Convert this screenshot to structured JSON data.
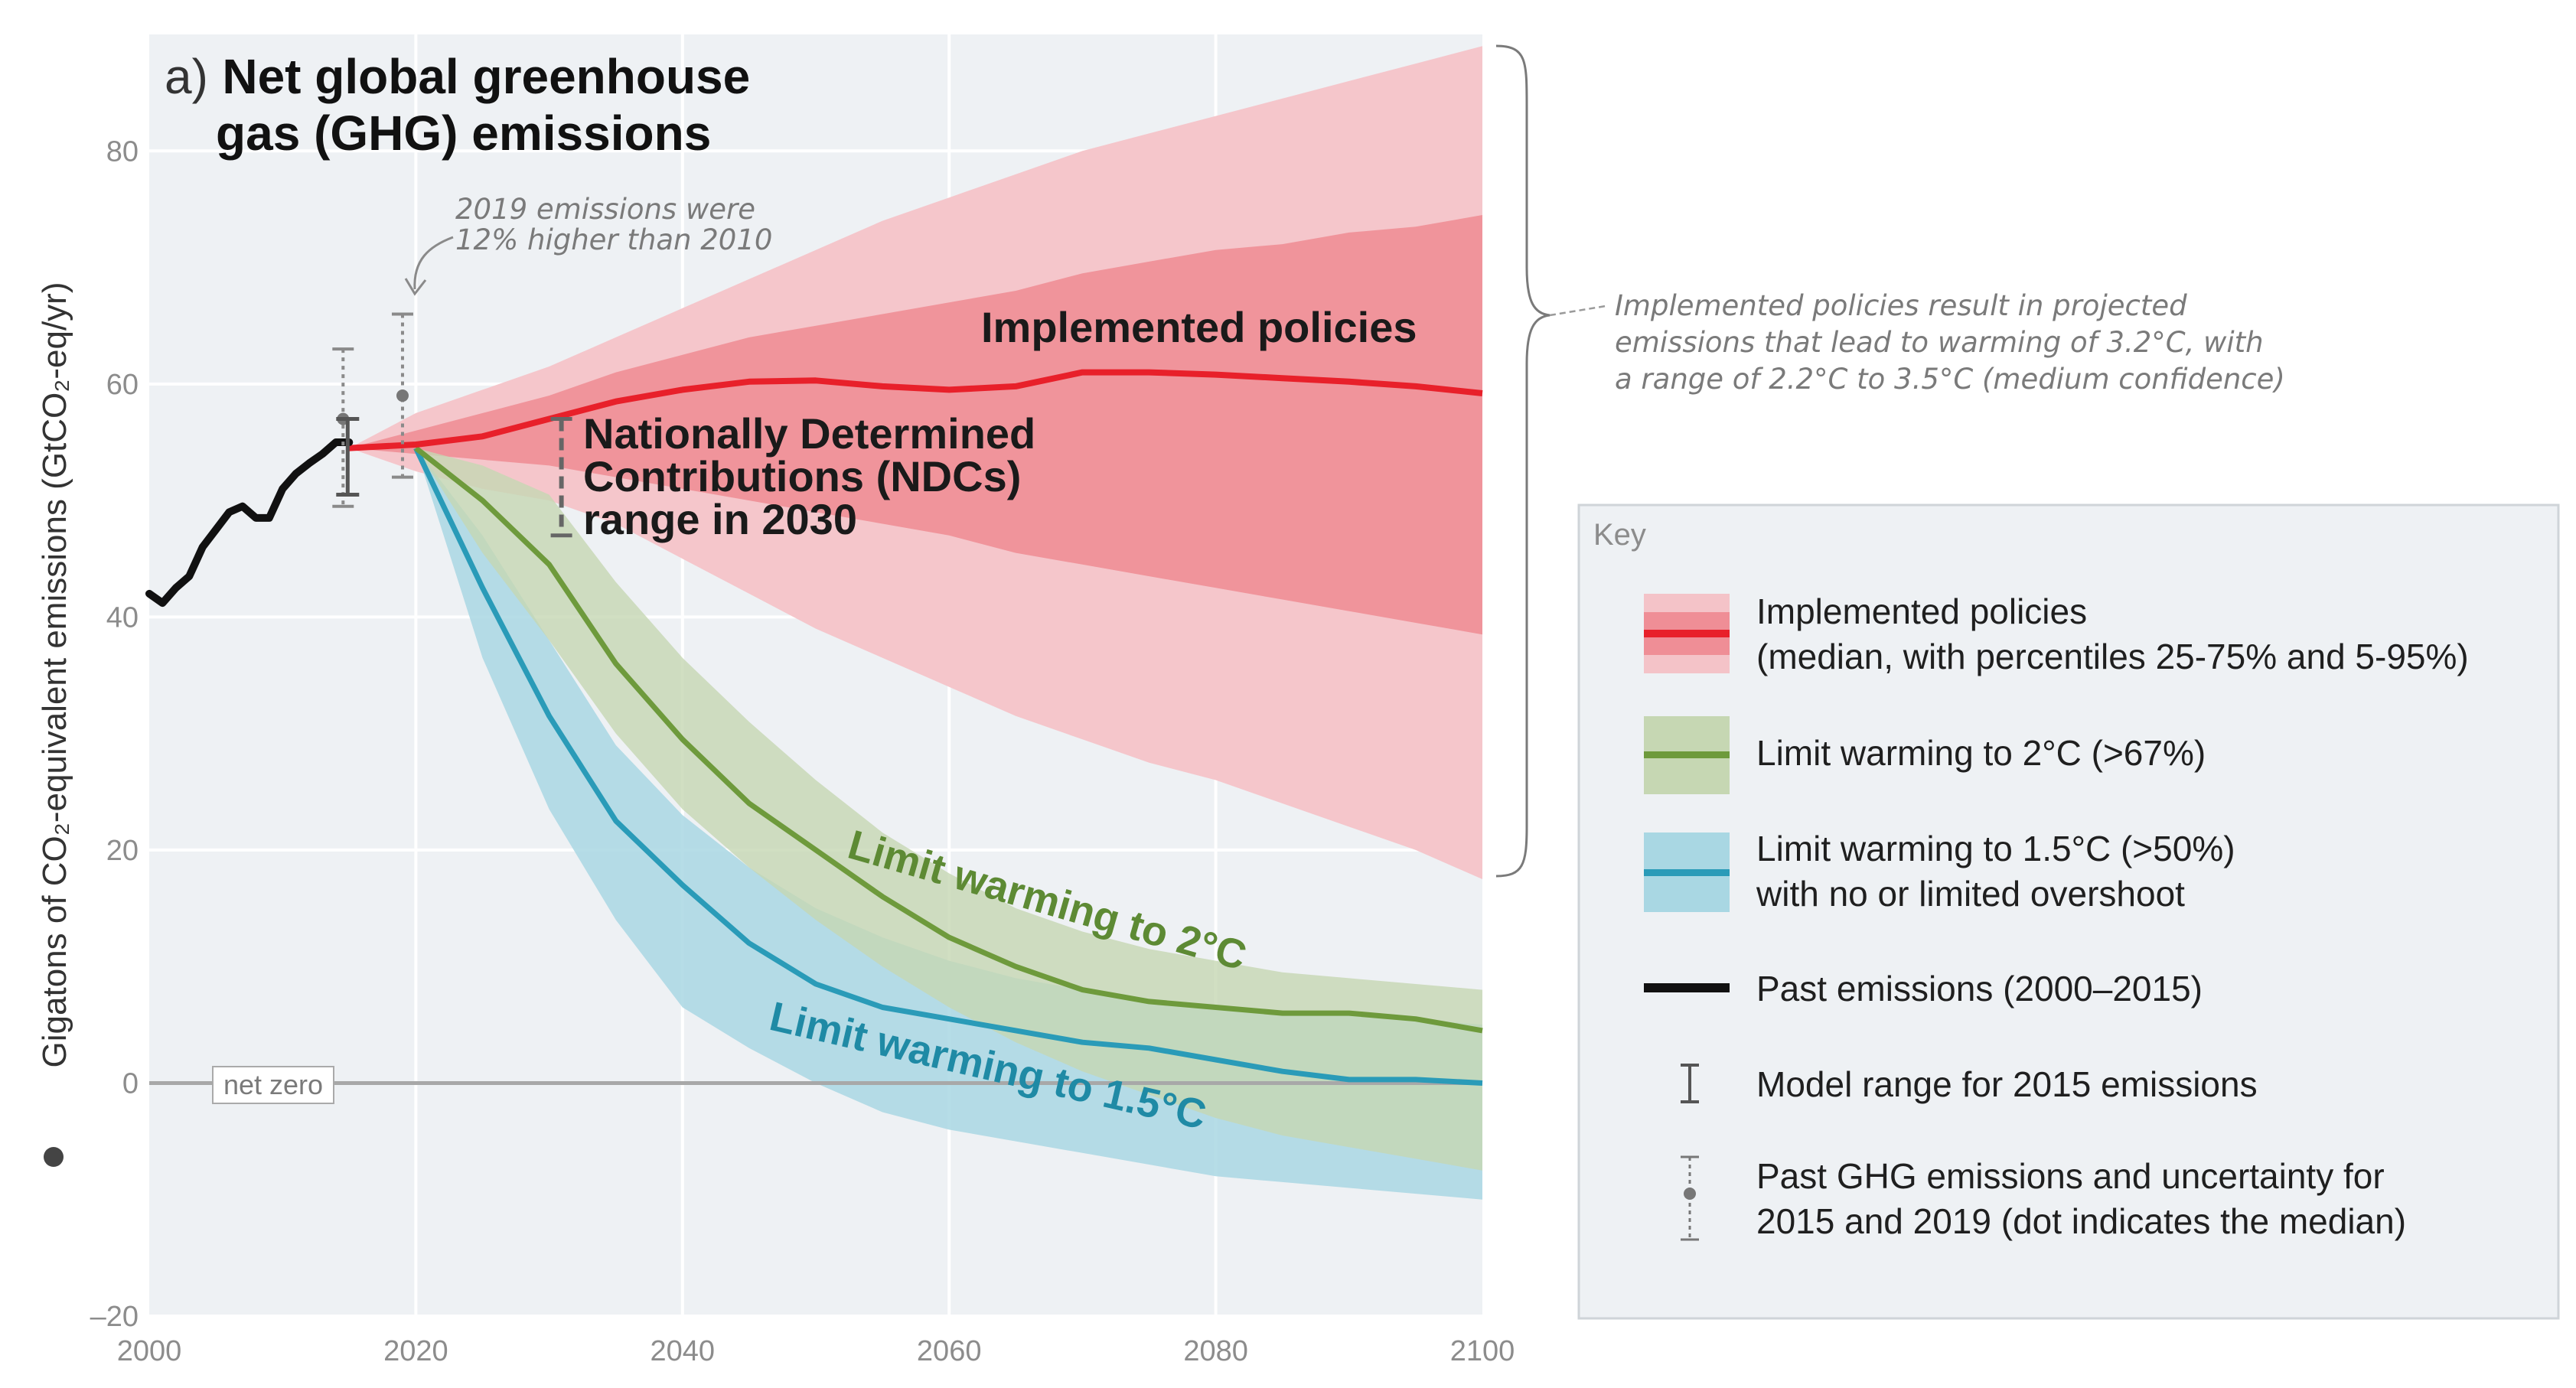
{
  "chart_data": {
    "type": "area",
    "title_prefix": "a)",
    "title_line1": "Net global greenhouse",
    "title_line2": "gas (GHG) emissions",
    "ylabel": "Gigatons of CO₂-equivalent emissions (GtCO₂-eq/yr)",
    "xlabel": "",
    "xlim": [
      2000,
      2100
    ],
    "ylim": [
      -20,
      90
    ],
    "x_ticks": [
      2000,
      2020,
      2040,
      2060,
      2080,
      2100
    ],
    "y_ticks": [
      -20,
      0,
      20,
      40,
      60,
      80
    ],
    "grid": true,
    "net_zero_label": "net zero",
    "annotations": {
      "emissions_2019_line1": "2019 emissions were",
      "emissions_2019_line2": "12% higher than 2010",
      "ndc_line1": "Nationally Determined",
      "ndc_line2": "Contributions (NDCs)",
      "ndc_line3": "range in 2030",
      "implemented_label": "Implemented policies",
      "limit2_label": "Limit warming to 2°C",
      "limit15_label": "Limit warming to 1.5°C",
      "brace_note_line1": "Implemented policies result in projected",
      "brace_note_line2": "emissions that lead to warming of 3.2°C, with",
      "brace_note_line3": "a range of 2.2°C to 3.5°C (medium confidence)"
    },
    "past_emissions": {
      "name": "Past emissions (2000–2015)",
      "x": [
        2000,
        2001,
        2002,
        2003,
        2004,
        2005,
        2006,
        2007,
        2008,
        2009,
        2010,
        2011,
        2012,
        2013,
        2014,
        2015
      ],
      "y": [
        42,
        41.2,
        42.5,
        43.5,
        46,
        47.5,
        49,
        49.5,
        48.5,
        48.5,
        51,
        52.3,
        53.2,
        54,
        55,
        55
      ]
    },
    "model_range_2015": {
      "x": 2015,
      "low": 50.5,
      "high": 57,
      "median": 54.5
    },
    "past_ghg_uncertainty": [
      {
        "x": 2015,
        "low": 49.5,
        "high": 63,
        "median": 57
      },
      {
        "x": 2019,
        "low": 52,
        "high": 66,
        "median": 59
      }
    ],
    "ndc_range_2030": {
      "x": 2030,
      "low": 47,
      "high": 57
    },
    "series": [
      {
        "name": "Implemented policies",
        "color": "#e8202a",
        "x": [
          2015,
          2020,
          2025,
          2030,
          2035,
          2040,
          2045,
          2050,
          2055,
          2060,
          2065,
          2070,
          2075,
          2080,
          2085,
          2090,
          2095,
          2100
        ],
        "median": [
          54.5,
          54.8,
          55.5,
          57,
          58.5,
          59.5,
          60.2,
          60.3,
          59.8,
          59.5,
          59.8,
          61,
          61,
          60.8,
          60.5,
          60.2,
          59.8,
          59.2
        ],
        "p25": [
          54.5,
          54,
          53.5,
          53,
          52,
          51,
          50,
          49,
          48,
          47,
          45.5,
          44.5,
          43.5,
          42.5,
          41.5,
          40.5,
          39.5,
          38.5
        ],
        "p75": [
          54.5,
          56,
          57.5,
          59,
          61,
          62.5,
          64,
          65,
          66,
          67,
          68,
          69.5,
          70.5,
          71.5,
          72,
          73,
          73.5,
          74.5
        ],
        "p05": [
          54.5,
          52.5,
          51,
          50,
          48,
          45,
          42,
          39,
          36.5,
          34,
          31.5,
          29.5,
          27.5,
          26,
          24,
          22,
          20,
          17.5
        ],
        "p95": [
          54.5,
          57.5,
          59.5,
          61.5,
          64,
          66.5,
          69,
          71.5,
          74,
          76,
          78,
          80,
          81.5,
          83,
          84.5,
          86,
          87.5,
          89
        ]
      },
      {
        "name": "Limit warming to 2°C (>67%)",
        "color": "#6e9a3c",
        "x": [
          2020,
          2025,
          2030,
          2035,
          2040,
          2045,
          2050,
          2055,
          2060,
          2065,
          2070,
          2075,
          2080,
          2085,
          2090,
          2095,
          2100
        ],
        "median": [
          54.5,
          50,
          44.5,
          36,
          29.5,
          24,
          20,
          16,
          12.5,
          10,
          8,
          7,
          6.5,
          6,
          6,
          5.5,
          4.5
        ],
        "low": [
          54.5,
          45.5,
          38,
          30,
          23.5,
          18.5,
          14,
          10,
          6.5,
          3.5,
          1,
          -1,
          -3,
          -4.5,
          -5.5,
          -6.5,
          -7.5
        ],
        "high": [
          54.5,
          53,
          50.5,
          43,
          36.5,
          31,
          26,
          21.5,
          18,
          15,
          13,
          11.5,
          10.5,
          9.5,
          9,
          8.5,
          8
        ]
      },
      {
        "name": "Limit warming to 1.5°C (>50%) with no or limited overshoot",
        "color": "#2a9bb8",
        "x": [
          2020,
          2025,
          2030,
          2035,
          2040,
          2045,
          2050,
          2055,
          2060,
          2065,
          2070,
          2075,
          2080,
          2085,
          2090,
          2095,
          2100
        ],
        "median": [
          54.5,
          42.5,
          31.5,
          22.5,
          17,
          12,
          8.5,
          6.5,
          5.5,
          4.5,
          3.5,
          3,
          2,
          1,
          0.3,
          0.3,
          0
        ],
        "low": [
          54.5,
          36.5,
          23.5,
          14,
          6.5,
          3,
          0,
          -2.5,
          -4,
          -5,
          -6,
          -7,
          -8,
          -8.5,
          -9,
          -9.5,
          -10
        ],
        "high": [
          54.5,
          47,
          38,
          29,
          23,
          18.5,
          15,
          12.5,
          10.5,
          9,
          8,
          7,
          6.5,
          6,
          6,
          5.5,
          5
        ]
      }
    ]
  },
  "legend": {
    "key_title": "Key",
    "items": [
      {
        "line1": "Implemented policies",
        "line2": "(median, with percentiles 25-75% and 5-95%)"
      },
      {
        "line1": "Limit warming to 2°C (>67%)",
        "line2": ""
      },
      {
        "line1": "Limit warming to 1.5°C (>50%)",
        "line2": "with no or limited overshoot"
      },
      {
        "line1": "Past emissions (2000–2015)",
        "line2": ""
      },
      {
        "line1": "Model range for 2015 emissions",
        "line2": ""
      },
      {
        "line1": "Past GHG emissions and uncertainty for",
        "line2": "2015 and 2019 (dot indicates the median)"
      }
    ]
  },
  "colors": {
    "plot_bg": "#eef1f4",
    "red_light": "#f4c3c8",
    "red_dark": "#ef8e96",
    "green_band": "#c6d7b3",
    "blue_band": "#a9d7e3",
    "black": "#111111"
  }
}
